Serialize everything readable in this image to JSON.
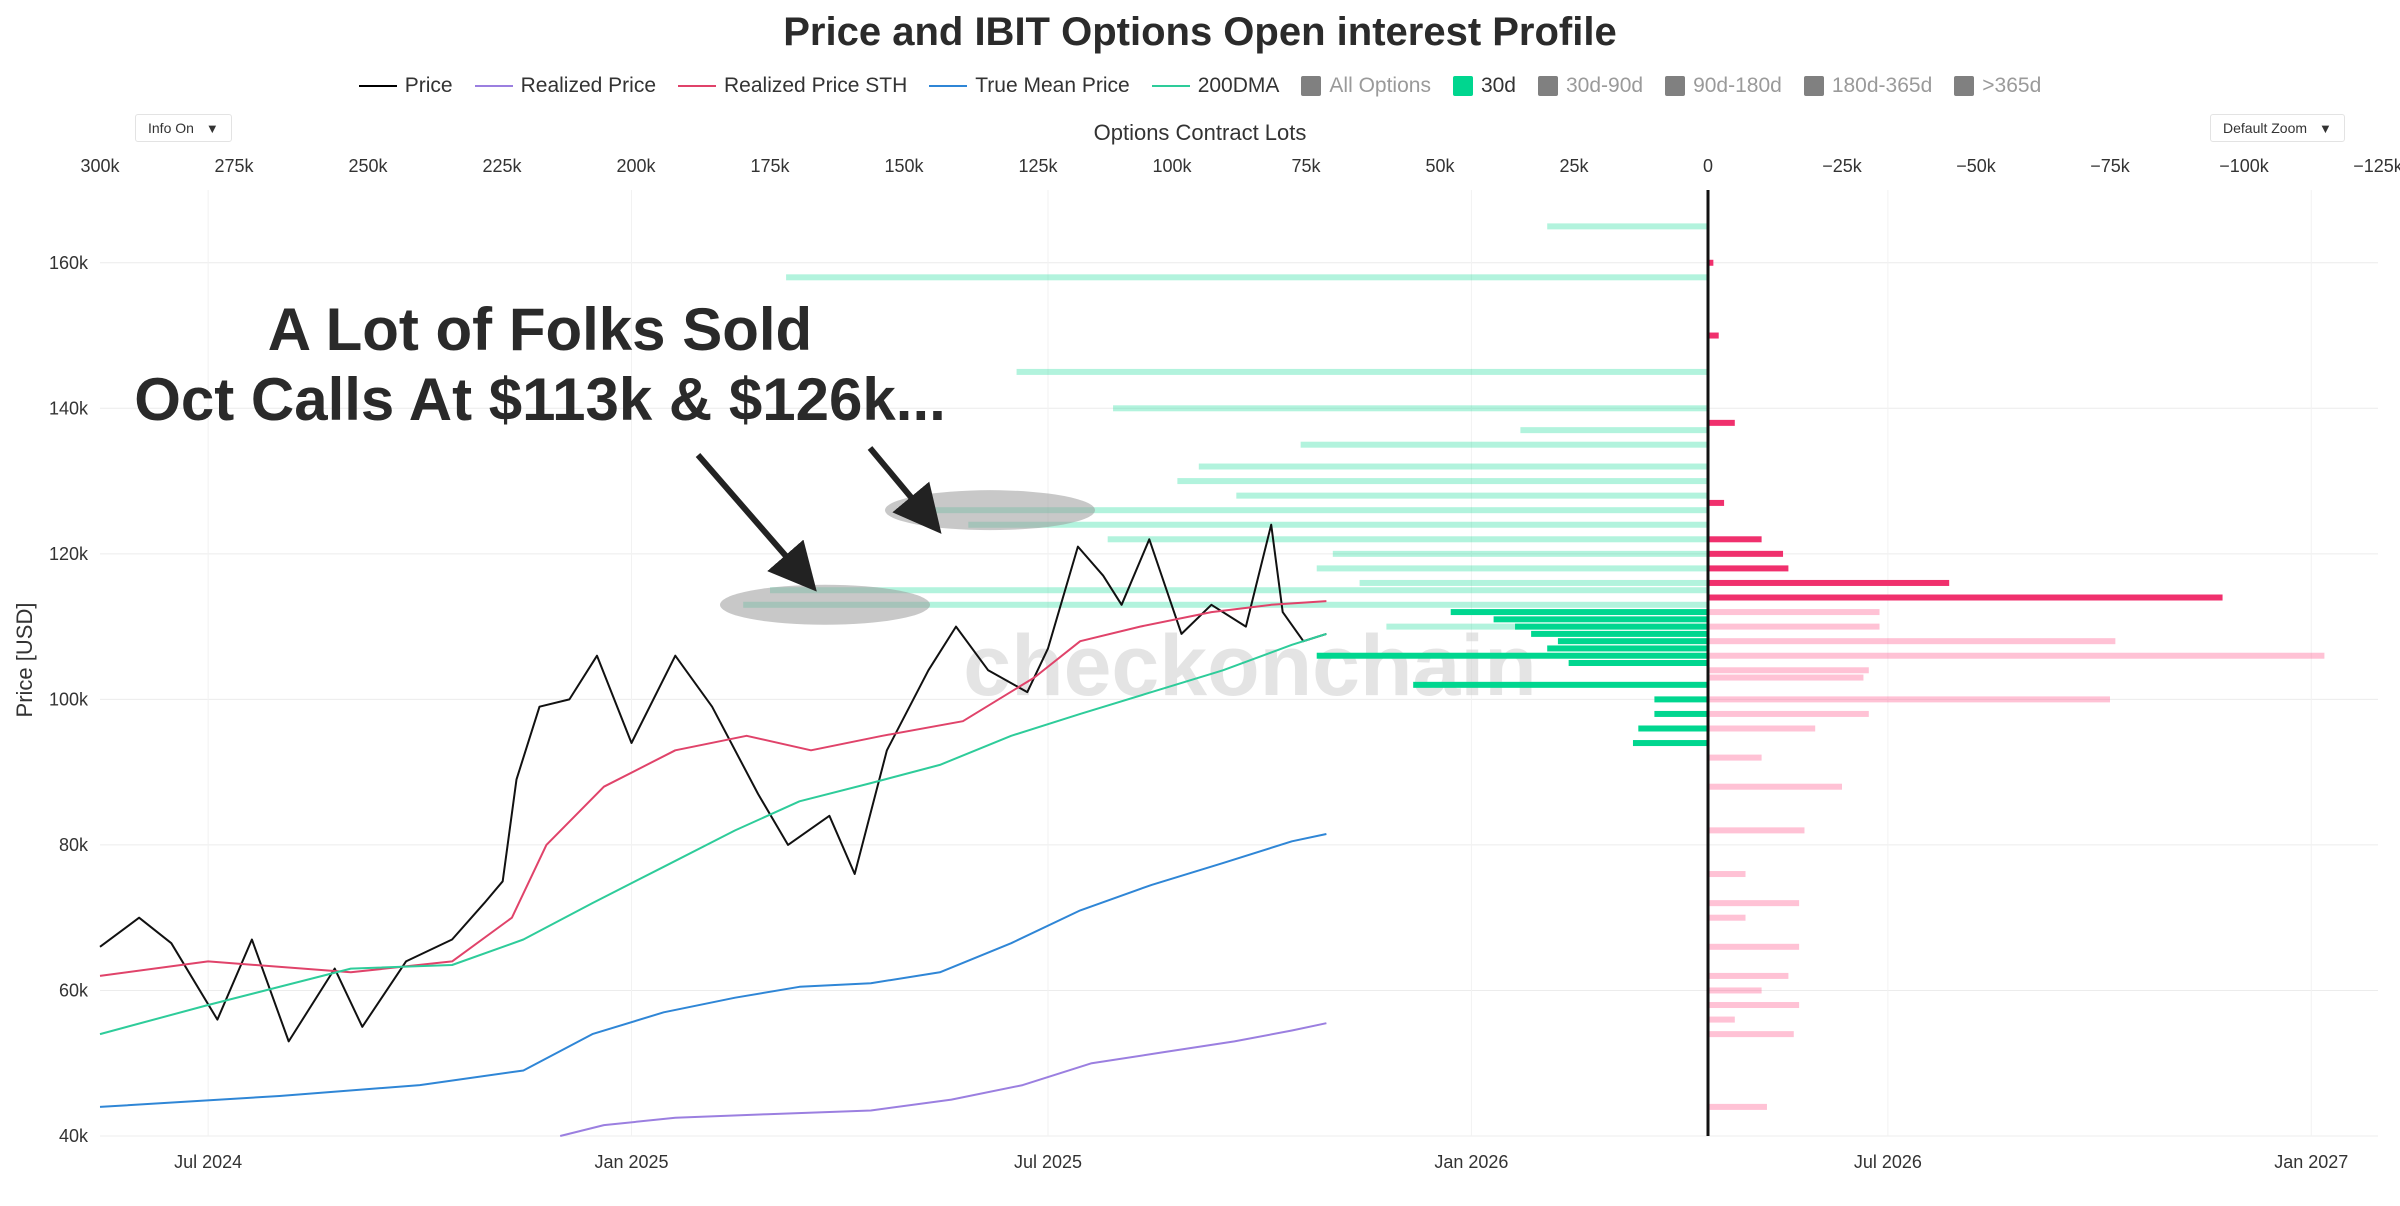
{
  "title": "Price and IBIT Options Open interest Profile",
  "legend": [
    {
      "label": "Price",
      "kind": "line",
      "color": "#000000",
      "dim": false
    },
    {
      "label": "Realized Price",
      "kind": "line",
      "color": "#9b7fe0",
      "dim": false
    },
    {
      "label": "Realized Price STH",
      "kind": "line",
      "color": "#e0436a",
      "dim": false
    },
    {
      "label": "True Mean Price",
      "kind": "line",
      "color": "#2f86d6",
      "dim": false
    },
    {
      "label": "200DMA",
      "kind": "line",
      "color": "#2ecc9a",
      "dim": false
    },
    {
      "label": "All Options",
      "kind": "box",
      "color": "#808080",
      "dim": true
    },
    {
      "label": "30d",
      "kind": "box",
      "color": "#00d68f",
      "dim": false
    },
    {
      "label": "30d-90d",
      "kind": "box",
      "color": "#808080",
      "dim": true
    },
    {
      "label": "90d-180d",
      "kind": "box",
      "color": "#808080",
      "dim": true
    },
    {
      "label": "180d-365d",
      "kind": "box",
      "color": "#808080",
      "dim": true
    },
    {
      "label": ">365d",
      "kind": "box",
      "color": "#808080",
      "dim": true
    }
  ],
  "controls": {
    "info": "Info On",
    "zoom": "Default Zoom"
  },
  "top_axis_title": "Options Contract Lots",
  "annotation": {
    "line1": "A Lot of Folks Sold",
    "line2": "Oct Calls At $113k & $126k..."
  },
  "watermark": "checkonchain",
  "chart_data": {
    "type": "line",
    "title": "Price and IBIT Options Open interest Profile",
    "ylabel": "Price [USD]",
    "xlabel": "",
    "ylim": [
      40000,
      170000
    ],
    "yticks": [
      40000,
      60000,
      80000,
      100000,
      120000,
      140000,
      160000
    ],
    "ytick_labels": [
      "40k",
      "60k",
      "80k",
      "100k",
      "120k",
      "140k",
      "160k"
    ],
    "xlim": [
      "2024-05-15",
      "2027-01-30"
    ],
    "xtick_labels": [
      "Jul 2024",
      "Jan 2025",
      "Jul 2025",
      "Jan 2026",
      "Jul 2026",
      "Jan 2027"
    ],
    "xtick_dates": [
      "2024-07-01",
      "2025-01-01",
      "2025-07-01",
      "2026-01-01",
      "2026-07-01",
      "2027-01-01"
    ],
    "top_axis": {
      "label": "Options Contract Lots",
      "range": [
        300000,
        -125000
      ],
      "ticks": [
        300000,
        275000,
        250000,
        225000,
        200000,
        175000,
        150000,
        125000,
        100000,
        75000,
        50000,
        25000,
        0,
        -25000,
        -50000,
        -75000,
        -100000,
        -125000
      ],
      "tick_labels": [
        "300k",
        "275k",
        "250k",
        "225k",
        "200k",
        "175k",
        "150k",
        "125k",
        "100k",
        "75k",
        "50k",
        "25k",
        "0",
        "−25k",
        "−50k",
        "−75k",
        "−100k",
        "−125k"
      ]
    },
    "series": [
      {
        "name": "Price",
        "color": "#111111",
        "dates": [
          "2024-05-15",
          "2024-06-01",
          "2024-06-15",
          "2024-07-05",
          "2024-07-20",
          "2024-08-05",
          "2024-08-25",
          "2024-09-06",
          "2024-09-25",
          "2024-10-15",
          "2024-10-29",
          "2024-11-06",
          "2024-11-12",
          "2024-11-22",
          "2024-12-05",
          "2024-12-17",
          "2025-01-01",
          "2025-01-20",
          "2025-02-05",
          "2025-02-25",
          "2025-03-10",
          "2025-03-28",
          "2025-04-08",
          "2025-04-22",
          "2025-05-10",
          "2025-05-22",
          "2025-06-05",
          "2025-06-22",
          "2025-07-01",
          "2025-07-14",
          "2025-07-25",
          "2025-08-02",
          "2025-08-14",
          "2025-08-28",
          "2025-09-10",
          "2025-09-25",
          "2025-10-06",
          "2025-10-11",
          "2025-10-20",
          "2025-10-30"
        ],
        "values": [
          66000,
          70000,
          66500,
          56000,
          67000,
          53000,
          63000,
          55000,
          64000,
          67000,
          72000,
          75000,
          89000,
          99000,
          100000,
          106000,
          94000,
          106000,
          99000,
          87000,
          80000,
          84000,
          76000,
          93000,
          104000,
          110000,
          104000,
          101000,
          107000,
          121000,
          117000,
          113000,
          122000,
          109000,
          113000,
          110000,
          124000,
          112000,
          108000,
          109000
        ]
      },
      {
        "name": "Realized Price STH",
        "color": "#e0436a",
        "dates": [
          "2024-05-15",
          "2024-07-01",
          "2024-09-01",
          "2024-10-15",
          "2024-11-10",
          "2024-11-25",
          "2024-12-20",
          "2025-01-20",
          "2025-02-20",
          "2025-03-20",
          "2025-04-20",
          "2025-05-25",
          "2025-06-25",
          "2025-07-15",
          "2025-08-10",
          "2025-09-10",
          "2025-10-06",
          "2025-10-30"
        ],
        "values": [
          62000,
          64000,
          62500,
          64000,
          70000,
          80000,
          88000,
          93000,
          95000,
          93000,
          95000,
          97000,
          103000,
          108000,
          110000,
          112000,
          113000,
          113500
        ]
      },
      {
        "name": "200DMA",
        "color": "#2ecc9a",
        "dates": [
          "2024-05-15",
          "2024-07-01",
          "2024-09-01",
          "2024-10-15",
          "2024-11-15",
          "2024-12-15",
          "2025-01-15",
          "2025-02-15",
          "2025-03-15",
          "2025-04-15",
          "2025-05-15",
          "2025-06-15",
          "2025-07-15",
          "2025-08-15",
          "2025-09-15",
          "2025-10-15",
          "2025-10-30"
        ],
        "values": [
          54000,
          58000,
          63000,
          63500,
          67000,
          72000,
          77000,
          82000,
          86000,
          88500,
          91000,
          95000,
          98000,
          101000,
          104000,
          107500,
          109000
        ]
      },
      {
        "name": "True Mean Price",
        "color": "#2f86d6",
        "dates": [
          "2024-05-15",
          "2024-08-01",
          "2024-10-01",
          "2024-11-15",
          "2024-12-15",
          "2025-01-15",
          "2025-02-15",
          "2025-03-15",
          "2025-04-15",
          "2025-05-15",
          "2025-06-15",
          "2025-07-15",
          "2025-08-15",
          "2025-09-15",
          "2025-10-15",
          "2025-10-30"
        ],
        "values": [
          44000,
          45500,
          47000,
          49000,
          54000,
          57000,
          59000,
          60500,
          61000,
          62500,
          66500,
          71000,
          74500,
          77500,
          80500,
          81500
        ]
      },
      {
        "name": "Realized Price",
        "color": "#9b7fe0",
        "dates": [
          "2024-12-01",
          "2024-12-20",
          "2025-01-20",
          "2025-03-01",
          "2025-04-15",
          "2025-05-20",
          "2025-06-20",
          "2025-07-20",
          "2025-08-20",
          "2025-09-20",
          "2025-10-15",
          "2025-10-30"
        ],
        "values": [
          40000,
          41500,
          42500,
          43000,
          43500,
          45000,
          47000,
          50000,
          51500,
          53000,
          54500,
          55500
        ]
      }
    ],
    "options_oi": {
      "note": "Horizontal open-interest profile at price strikes; positive lots plotted left (calls, green), negative lots plotted right (puts, red). Strong = 30d bucket, light = all options.",
      "calls_all": [
        {
          "strike": 165000,
          "lots": 30000
        },
        {
          "strike": 158000,
          "lots": 172000
        },
        {
          "strike": 145000,
          "lots": 129000
        },
        {
          "strike": 140000,
          "lots": 111000
        },
        {
          "strike": 137000,
          "lots": 35000
        },
        {
          "strike": 135000,
          "lots": 76000
        },
        {
          "strike": 132000,
          "lots": 95000
        },
        {
          "strike": 130000,
          "lots": 99000
        },
        {
          "strike": 128000,
          "lots": 88000
        },
        {
          "strike": 126000,
          "lots": 150000
        },
        {
          "strike": 124000,
          "lots": 138000
        },
        {
          "strike": 122000,
          "lots": 112000
        },
        {
          "strike": 120000,
          "lots": 70000
        },
        {
          "strike": 118000,
          "lots": 73000
        },
        {
          "strike": 116000,
          "lots": 65000
        },
        {
          "strike": 115000,
          "lots": 175000
        },
        {
          "strike": 113000,
          "lots": 180000
        },
        {
          "strike": 110000,
          "lots": 60000
        }
      ],
      "calls_30d": [
        {
          "strike": 112000,
          "lots": 48000
        },
        {
          "strike": 111000,
          "lots": 40000
        },
        {
          "strike": 110000,
          "lots": 36000
        },
        {
          "strike": 109000,
          "lots": 33000
        },
        {
          "strike": 108000,
          "lots": 28000
        },
        {
          "strike": 107000,
          "lots": 30000
        },
        {
          "strike": 106000,
          "lots": 73000
        },
        {
          "strike": 105000,
          "lots": 26000
        },
        {
          "strike": 102000,
          "lots": 55000
        },
        {
          "strike": 100000,
          "lots": 10000
        },
        {
          "strike": 98000,
          "lots": 10000
        },
        {
          "strike": 96000,
          "lots": 13000
        },
        {
          "strike": 94000,
          "lots": 14000
        }
      ],
      "puts_all": [
        {
          "strike": 112000,
          "lots": -32000
        },
        {
          "strike": 110000,
          "lots": -32000
        },
        {
          "strike": 108000,
          "lots": -76000
        },
        {
          "strike": 106000,
          "lots": -115000
        },
        {
          "strike": 104000,
          "lots": -30000
        },
        {
          "strike": 103000,
          "lots": -29000
        },
        {
          "strike": 100000,
          "lots": -75000
        },
        {
          "strike": 98000,
          "lots": -30000
        },
        {
          "strike": 96000,
          "lots": -20000
        },
        {
          "strike": 92000,
          "lots": -10000
        },
        {
          "strike": 88000,
          "lots": -25000
        },
        {
          "strike": 82000,
          "lots": -18000
        },
        {
          "strike": 76000,
          "lots": -7000
        },
        {
          "strike": 72000,
          "lots": -17000
        },
        {
          "strike": 70000,
          "lots": -7000
        },
        {
          "strike": 66000,
          "lots": -17000
        },
        {
          "strike": 62000,
          "lots": -15000
        },
        {
          "strike": 60000,
          "lots": -10000
        },
        {
          "strike": 58000,
          "lots": -17000
        },
        {
          "strike": 56000,
          "lots": -5000
        },
        {
          "strike": 54000,
          "lots": -16000
        },
        {
          "strike": 44000,
          "lots": -11000
        }
      ],
      "puts_30d": [
        {
          "strike": 122000,
          "lots": -10000
        },
        {
          "strike": 120000,
          "lots": -14000
        },
        {
          "strike": 118000,
          "lots": -15000
        },
        {
          "strike": 116000,
          "lots": -45000
        },
        {
          "strike": 114000,
          "lots": -96000
        },
        {
          "strike": 160000,
          "lots": -1000
        },
        {
          "strike": 150000,
          "lots": -2000
        },
        {
          "strike": 138000,
          "lots": -5000
        },
        {
          "strike": 127000,
          "lots": -3000
        }
      ]
    },
    "annotations": [
      {
        "text": "A Lot of Folks Sold Oct Calls At $113k & $126k...",
        "targets": [
          113000,
          126000
        ]
      }
    ]
  }
}
